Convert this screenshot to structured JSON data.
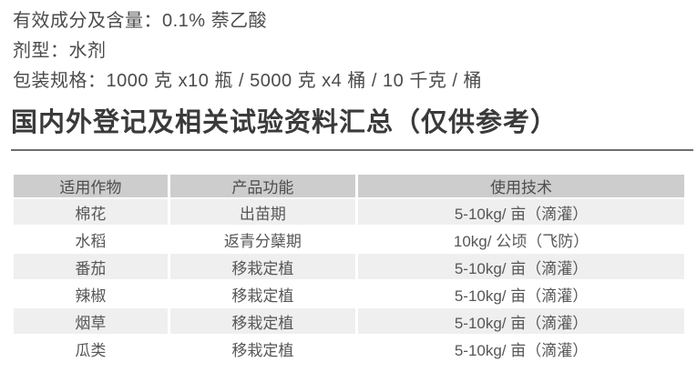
{
  "info": {
    "active_ingredient": "有效成分及含量：0.1% 萘乙酸",
    "formulation": "剂型：水剂",
    "packaging": "包装规格：1000 克 x10 瓶  / 5000 克 x4 桶  / 10 千克 / 桶"
  },
  "section": {
    "title": "国内外登记及相关试验资料汇总（仅供参考）"
  },
  "table": {
    "headers": [
      "适用作物",
      "产品功能",
      "使用技术"
    ],
    "rows": [
      [
        "棉花",
        "出苗期",
        "5-10kg/ 亩（滴灌）"
      ],
      [
        "水稻",
        "返青分蘖期",
        "10kg/ 公顷（飞防）"
      ],
      [
        "番茄",
        "移栽定植",
        "5-10kg/ 亩（滴灌）"
      ],
      [
        "辣椒",
        "移栽定植",
        "5-10kg/ 亩（滴灌）"
      ],
      [
        "烟草",
        "移栽定植",
        "5-10kg/ 亩（滴灌）"
      ],
      [
        "瓜类",
        "移栽定植",
        "5-10kg/ 亩（滴灌）"
      ]
    ]
  },
  "colors": {
    "header_bg": "#cdcdcd",
    "row_alt_bg": "#efefef",
    "body_text": "#4b4b4b",
    "heading_text": "#3a3a3a",
    "rule": "#6e6e6e"
  }
}
